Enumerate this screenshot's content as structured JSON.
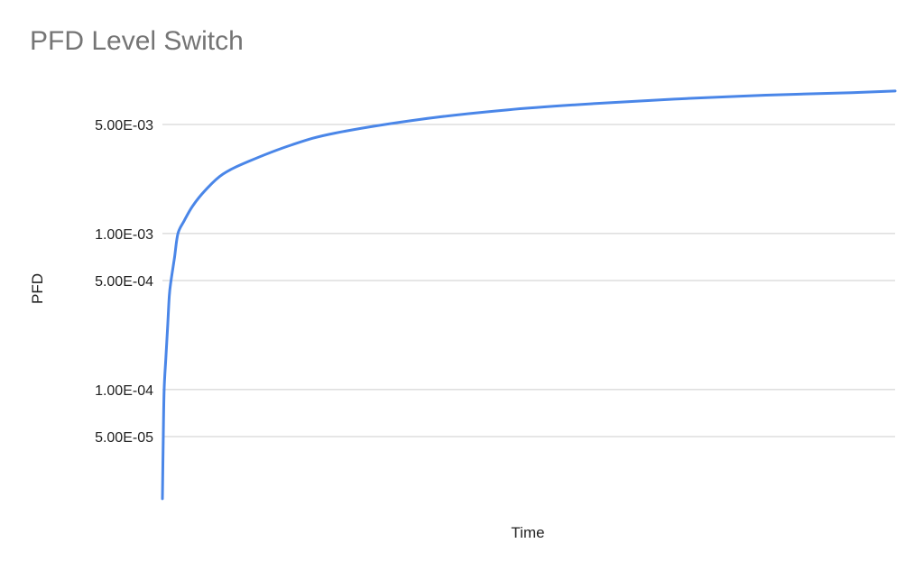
{
  "chart_data": {
    "type": "line",
    "title": "PFD Level Switch",
    "xlabel": "Time",
    "ylabel": "PFD",
    "yscale": "log",
    "ylim": [
      2e-05,
      0.0075
    ],
    "yticks": [
      {
        "value": 5e-05,
        "label": "5.00E-05"
      },
      {
        "value": 0.0001,
        "label": "1.00E-04"
      },
      {
        "value": 0.0005,
        "label": "5.00E-04"
      },
      {
        "value": 0.001,
        "label": "1.00E-03"
      },
      {
        "value": 0.005,
        "label": "5.00E-03"
      }
    ],
    "grid": true,
    "legend": "none",
    "colors": {
      "line": "#4a86e8",
      "grid": "#cccccc",
      "title": "#757575",
      "text": "#222222"
    },
    "series": [
      {
        "x": [
          0,
          1,
          2,
          4,
          6,
          8,
          10,
          14,
          18,
          25,
          35,
          50,
          70,
          100,
          150,
          200,
          300,
          400,
          500,
          600,
          700,
          800,
          850
        ],
        "values": [
          2e-05,
          5e-05,
          0.0001,
          0.00016,
          0.00025,
          0.0004,
          0.0005,
          0.0007,
          0.001,
          0.0012,
          0.0015,
          0.0019,
          0.0024,
          0.0029,
          0.0037,
          0.0044,
          0.0054,
          0.0062,
          0.0068,
          0.0073,
          0.0077,
          0.008,
          0.0082
        ]
      }
    ]
  }
}
